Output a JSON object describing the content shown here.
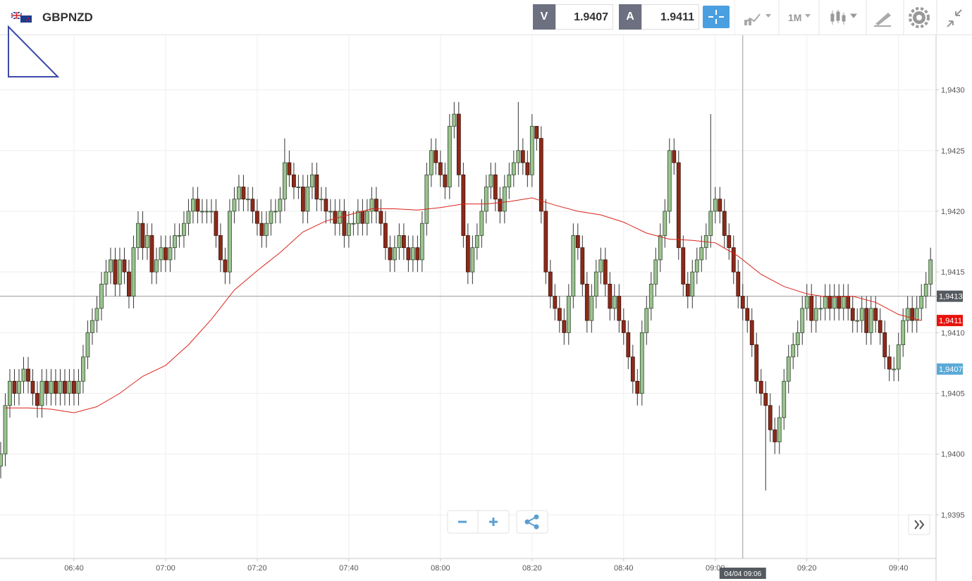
{
  "header": {
    "symbol": "GBPNZD",
    "bid_label": "V",
    "bid": "1.9407",
    "ask_label": "A",
    "ask": "1.9411",
    "timeframe": "1M"
  },
  "chart_data": {
    "type": "candlestick",
    "x": [
      384,
      385,
      386,
      387,
      388,
      389,
      390,
      391,
      392,
      393,
      394,
      395,
      396,
      397,
      398,
      399,
      400,
      401,
      402,
      403,
      404,
      405,
      406,
      407,
      408,
      409,
      410,
      411,
      412,
      413,
      414,
      415,
      416,
      417,
      418,
      419,
      420,
      421,
      422,
      423,
      424,
      425,
      426,
      427,
      428,
      429,
      430,
      431,
      432,
      433,
      434,
      435,
      436,
      437,
      438,
      439,
      440,
      441,
      442,
      443,
      444,
      445,
      446,
      447,
      448,
      449,
      450,
      451,
      452,
      453,
      454,
      455,
      456,
      457,
      458,
      459,
      460,
      461,
      462,
      463,
      464,
      465,
      466,
      467,
      468,
      469,
      470,
      471,
      472,
      473,
      474,
      475,
      476,
      477,
      478,
      479,
      480,
      481,
      482,
      483,
      484,
      485,
      486,
      487,
      488,
      489,
      490,
      491,
      492,
      493,
      494,
      495,
      496,
      497,
      498,
      499,
      500,
      501,
      502,
      503,
      504,
      505,
      506,
      507,
      508,
      509,
      510,
      511,
      512,
      513,
      514,
      515,
      516,
      517,
      518,
      519,
      520,
      521,
      522,
      523,
      524,
      525,
      526,
      527,
      528,
      529,
      530,
      531,
      532,
      533,
      534,
      535,
      536,
      537,
      538,
      539,
      540,
      541,
      542,
      543,
      544,
      545,
      546,
      547,
      548,
      549,
      550,
      551,
      552,
      553,
      554,
      555,
      556,
      557,
      558,
      559,
      560,
      561,
      562,
      563,
      564,
      565,
      566,
      567,
      568,
      569,
      570,
      571,
      572,
      573,
      574,
      575,
      576,
      577,
      578,
      579,
      580,
      581,
      582,
      583,
      584,
      585,
      586,
      587
    ],
    "open": [
      1.9399,
      1.94,
      1.9404,
      1.9406,
      1.9405,
      1.9406,
      1.9407,
      1.9406,
      1.9405,
      1.9404,
      1.9406,
      1.9405,
      1.9406,
      1.9405,
      1.9406,
      1.9405,
      1.9406,
      1.9405,
      1.9406,
      1.9408,
      1.941,
      1.9411,
      1.9412,
      1.9414,
      1.9415,
      1.9416,
      1.9414,
      1.9416,
      1.9415,
      1.9413,
      1.9417,
      1.9419,
      1.9417,
      1.9418,
      1.9415,
      1.9416,
      1.9417,
      1.9416,
      1.9417,
      1.9418,
      1.9418,
      1.9419,
      1.942,
      1.9421,
      1.942,
      1.942,
      1.942,
      1.942,
      1.9418,
      1.9416,
      1.9415,
      1.942,
      1.9421,
      1.9422,
      1.9421,
      1.9421,
      1.942,
      1.9419,
      1.9418,
      1.9419,
      1.942,
      1.942,
      1.9421,
      1.9424,
      1.9423,
      1.9422,
      1.9422,
      1.942,
      1.9422,
      1.9423,
      1.9421,
      1.9421,
      1.942,
      1.942,
      1.9419,
      1.942,
      1.9418,
      1.9419,
      1.9419,
      1.942,
      1.9419,
      1.942,
      1.9421,
      1.942,
      1.9419,
      1.9417,
      1.9416,
      1.9417,
      1.9418,
      1.9417,
      1.9416,
      1.9417,
      1.9416,
      1.9419,
      1.9423,
      1.9425,
      1.9424,
      1.9423,
      1.9422,
      1.9427,
      1.9428,
      1.9423,
      1.9418,
      1.9415,
      1.9417,
      1.9418,
      1.942,
      1.9422,
      1.9423,
      1.9421,
      1.942,
      1.9422,
      1.9423,
      1.9424,
      1.9425,
      1.9424,
      1.9423,
      1.9427,
      1.9426,
      1.942,
      1.9415,
      1.9413,
      1.9412,
      1.9411,
      1.941,
      1.9413,
      1.9418,
      1.9417,
      1.9414,
      1.9411,
      1.9413,
      1.9415,
      1.9416,
      1.9414,
      1.9412,
      1.9413,
      1.9411,
      1.941,
      1.9408,
      1.9406,
      1.9405,
      1.941,
      1.9412,
      1.9414,
      1.9416,
      1.9418,
      1.942,
      1.9425,
      1.9424,
      1.9417,
      1.9414,
      1.9413,
      1.9415,
      1.9416,
      1.9417,
      1.9418,
      1.942,
      1.9421,
      1.942,
      1.9418,
      1.9417,
      1.9415,
      1.9413,
      1.9412,
      1.9411,
      1.9409,
      1.9406,
      1.9405,
      1.9404,
      1.9402,
      1.9401,
      1.9403,
      1.9406,
      1.9408,
      1.9409,
      1.941,
      1.9412,
      1.9413,
      1.9411,
      1.9412,
      1.9412,
      1.9413,
      1.9412,
      1.9413,
      1.9412,
      1.9413,
      1.9412,
      1.9411,
      1.9411,
      1.9412,
      1.941,
      1.9412,
      1.9411,
      1.941,
      1.9408,
      1.9407,
      1.9407,
      1.9409,
      1.9411,
      1.9412,
      1.9411,
      1.9412,
      1.9413,
      1.9414
    ],
    "high": [
      1.9401,
      1.9405,
      1.9407,
      1.9407,
      1.9407,
      1.9408,
      1.9408,
      1.9407,
      1.9406,
      1.9407,
      1.9407,
      1.9407,
      1.9407,
      1.9407,
      1.9407,
      1.9407,
      1.9407,
      1.9407,
      1.9409,
      1.9411,
      1.9412,
      1.9413,
      1.9415,
      1.9416,
      1.9417,
      1.9417,
      1.9417,
      1.9417,
      1.9416,
      1.9418,
      1.942,
      1.942,
      1.9419,
      1.9419,
      1.9417,
      1.9418,
      1.9418,
      1.9418,
      1.9419,
      1.9419,
      1.942,
      1.9421,
      1.9422,
      1.9422,
      1.9421,
      1.9421,
      1.9421,
      1.9421,
      1.9419,
      1.9417,
      1.9421,
      1.9422,
      1.9423,
      1.9423,
      1.9422,
      1.9422,
      1.9421,
      1.942,
      1.942,
      1.9421,
      1.9421,
      1.9422,
      1.9426,
      1.9425,
      1.9424,
      1.9423,
      1.9423,
      1.9423,
      1.9424,
      1.9424,
      1.9422,
      1.9422,
      1.9421,
      1.9421,
      1.9421,
      1.9421,
      1.942,
      1.942,
      1.9421,
      1.9421,
      1.9421,
      1.9422,
      1.9422,
      1.9421,
      1.942,
      1.9418,
      1.9418,
      1.9419,
      1.9419,
      1.9418,
      1.9418,
      1.9418,
      1.942,
      1.9424,
      1.9426,
      1.9426,
      1.9425,
      1.9424,
      1.9428,
      1.9429,
      1.9429,
      1.9424,
      1.9419,
      1.9418,
      1.9419,
      1.9421,
      1.9423,
      1.9424,
      1.9424,
      1.9422,
      1.9423,
      1.9424,
      1.9425,
      1.9429,
      1.9426,
      1.9425,
      1.9428,
      1.9427,
      1.9427,
      1.9421,
      1.9416,
      1.9414,
      1.9413,
      1.9412,
      1.9414,
      1.9419,
      1.9419,
      1.9418,
      1.9415,
      1.9414,
      1.9416,
      1.9417,
      1.9417,
      1.9415,
      1.9414,
      1.9414,
      1.9412,
      1.9411,
      1.9409,
      1.9407,
      1.9411,
      1.9413,
      1.9415,
      1.9417,
      1.9419,
      1.9421,
      1.9426,
      1.9426,
      1.9425,
      1.9418,
      1.9415,
      1.9416,
      1.9417,
      1.9418,
      1.9419,
      1.9428,
      1.9422,
      1.9422,
      1.9421,
      1.9419,
      1.9418,
      1.9416,
      1.9414,
      1.9413,
      1.9412,
      1.941,
      1.9407,
      1.9406,
      1.9405,
      1.9403,
      1.9404,
      1.9407,
      1.9409,
      1.941,
      1.9411,
      1.9413,
      1.9414,
      1.9414,
      1.9413,
      1.9413,
      1.9414,
      1.9414,
      1.9414,
      1.9414,
      1.9414,
      1.9414,
      1.9413,
      1.9412,
      1.9413,
      1.9413,
      1.9413,
      1.9413,
      1.9412,
      1.9411,
      1.9409,
      1.9408,
      1.941,
      1.9412,
      1.9413,
      1.9413,
      1.9413,
      1.9414,
      1.9415,
      1.9417
    ],
    "low": [
      1.9398,
      1.9399,
      1.9403,
      1.9404,
      1.9404,
      1.9405,
      1.9405,
      1.9404,
      1.9403,
      1.9403,
      1.9404,
      1.9404,
      1.9404,
      1.9404,
      1.9404,
      1.9404,
      1.9404,
      1.9404,
      1.9405,
      1.9407,
      1.9409,
      1.941,
      1.9411,
      1.9413,
      1.9414,
      1.9413,
      1.9413,
      1.9414,
      1.9412,
      1.9412,
      1.9416,
      1.9416,
      1.9416,
      1.9414,
      1.9414,
      1.9415,
      1.9415,
      1.9415,
      1.9416,
      1.9417,
      1.9417,
      1.9418,
      1.9419,
      1.9419,
      1.9419,
      1.9419,
      1.9419,
      1.9417,
      1.9415,
      1.9414,
      1.9414,
      1.9419,
      1.942,
      1.942,
      1.942,
      1.9419,
      1.9418,
      1.9417,
      1.9417,
      1.9418,
      1.9419,
      1.9419,
      1.942,
      1.9422,
      1.9421,
      1.9421,
      1.9419,
      1.9419,
      1.9421,
      1.942,
      1.942,
      1.9419,
      1.9419,
      1.9418,
      1.9418,
      1.9417,
      1.9417,
      1.9418,
      1.9418,
      1.9418,
      1.9418,
      1.9419,
      1.9419,
      1.9418,
      1.9416,
      1.9415,
      1.9415,
      1.9416,
      1.9416,
      1.9415,
      1.9415,
      1.9415,
      1.9415,
      1.9418,
      1.9422,
      1.9423,
      1.9422,
      1.9421,
      1.9421,
      1.9426,
      1.9422,
      1.9417,
      1.9414,
      1.9414,
      1.9416,
      1.9417,
      1.9419,
      1.9421,
      1.942,
      1.9419,
      1.9419,
      1.9421,
      1.9422,
      1.9423,
      1.9423,
      1.9422,
      1.9422,
      1.9425,
      1.9419,
      1.9414,
      1.9412,
      1.9411,
      1.941,
      1.9409,
      1.9409,
      1.9412,
      1.9416,
      1.9413,
      1.941,
      1.941,
      1.9412,
      1.9414,
      1.9413,
      1.9411,
      1.9411,
      1.941,
      1.9409,
      1.9407,
      1.9405,
      1.9404,
      1.9404,
      1.9409,
      1.9411,
      1.9413,
      1.9415,
      1.9417,
      1.9419,
      1.9423,
      1.9416,
      1.9413,
      1.9412,
      1.9412,
      1.9414,
      1.9415,
      1.9416,
      1.9417,
      1.9419,
      1.9419,
      1.9417,
      1.9416,
      1.9414,
      1.9412,
      1.9411,
      1.941,
      1.9408,
      1.9405,
      1.9404,
      1.9397,
      1.9401,
      1.94,
      1.94,
      1.9402,
      1.9405,
      1.9407,
      1.9408,
      1.9409,
      1.9411,
      1.941,
      1.941,
      1.9411,
      1.9411,
      1.9411,
      1.9411,
      1.9411,
      1.9411,
      1.9411,
      1.941,
      1.941,
      1.941,
      1.9409,
      1.9409,
      1.941,
      1.9409,
      1.9407,
      1.9406,
      1.9406,
      1.9406,
      1.9408,
      1.941,
      1.941,
      1.941,
      1.9411,
      1.9412,
      1.9413
    ],
    "close": [
      1.94,
      1.9404,
      1.9406,
      1.9405,
      1.9406,
      1.9407,
      1.9406,
      1.9405,
      1.9404,
      1.9406,
      1.9405,
      1.9406,
      1.9405,
      1.9406,
      1.9405,
      1.9406,
      1.9405,
      1.9406,
      1.9408,
      1.941,
      1.9411,
      1.9412,
      1.9414,
      1.9415,
      1.9416,
      1.9414,
      1.9416,
      1.9415,
      1.9413,
      1.9417,
      1.9419,
      1.9417,
      1.9418,
      1.9415,
      1.9416,
      1.9417,
      1.9416,
      1.9417,
      1.9418,
      1.9418,
      1.9419,
      1.942,
      1.9421,
      1.942,
      1.942,
      1.942,
      1.942,
      1.9418,
      1.9416,
      1.9415,
      1.942,
      1.9421,
      1.9422,
      1.9421,
      1.9421,
      1.942,
      1.9419,
      1.9418,
      1.9419,
      1.942,
      1.942,
      1.9421,
      1.9424,
      1.9423,
      1.9422,
      1.9422,
      1.942,
      1.9422,
      1.9423,
      1.9421,
      1.9421,
      1.942,
      1.942,
      1.9419,
      1.942,
      1.9418,
      1.9419,
      1.9419,
      1.942,
      1.9419,
      1.942,
      1.9421,
      1.942,
      1.9419,
      1.9417,
      1.9416,
      1.9417,
      1.9418,
      1.9417,
      1.9416,
      1.9417,
      1.9416,
      1.9419,
      1.9423,
      1.9425,
      1.9424,
      1.9423,
      1.9422,
      1.9427,
      1.9428,
      1.9423,
      1.9418,
      1.9415,
      1.9417,
      1.9418,
      1.942,
      1.9422,
      1.9423,
      1.9421,
      1.942,
      1.9422,
      1.9423,
      1.9424,
      1.9425,
      1.9424,
      1.9423,
      1.9427,
      1.9426,
      1.942,
      1.9415,
      1.9413,
      1.9412,
      1.9411,
      1.941,
      1.9413,
      1.9418,
      1.9417,
      1.9414,
      1.9411,
      1.9413,
      1.9415,
      1.9416,
      1.9414,
      1.9412,
      1.9413,
      1.9411,
      1.941,
      1.9408,
      1.9406,
      1.9405,
      1.941,
      1.9412,
      1.9414,
      1.9416,
      1.9418,
      1.942,
      1.9425,
      1.9424,
      1.9417,
      1.9414,
      1.9413,
      1.9415,
      1.9416,
      1.9417,
      1.9418,
      1.942,
      1.9421,
      1.942,
      1.9418,
      1.9417,
      1.9415,
      1.9413,
      1.9412,
      1.9411,
      1.9409,
      1.9406,
      1.9405,
      1.9404,
      1.9402,
      1.9401,
      1.9403,
      1.9406,
      1.9408,
      1.9409,
      1.941,
      1.9412,
      1.9413,
      1.9411,
      1.9412,
      1.9412,
      1.9413,
      1.9412,
      1.9413,
      1.9412,
      1.9413,
      1.9412,
      1.9411,
      1.9411,
      1.9412,
      1.941,
      1.9412,
      1.9411,
      1.941,
      1.9408,
      1.9407,
      1.9407,
      1.9409,
      1.9411,
      1.9412,
      1.9411,
      1.9412,
      1.9413,
      1.9414,
      1.9416
    ],
    "up_color": "#9cc391",
    "down_color": "#8d2a19",
    "xlim": [
      383.85,
      588.2
    ],
    "ylim": [
      1.93914,
      1.94345
    ],
    "xticks": [
      {
        "value": 400,
        "label": "06:40"
      },
      {
        "value": 420,
        "label": "07:00"
      },
      {
        "value": 440,
        "label": "07:20"
      },
      {
        "value": 460,
        "label": "07:40"
      },
      {
        "value": 480,
        "label": "08:00"
      },
      {
        "value": 500,
        "label": "08:20"
      },
      {
        "value": 520,
        "label": "08:40"
      },
      {
        "value": 540,
        "label": "09:00"
      },
      {
        "value": 560,
        "label": "09:20"
      },
      {
        "value": 580,
        "label": "09:40"
      }
    ],
    "yticks": [
      {
        "value": 1.9395,
        "label": "1,9395"
      },
      {
        "value": 1.94,
        "label": "1,9400"
      },
      {
        "value": 1.9405,
        "label": "1,9405"
      },
      {
        "value": 1.941,
        "label": "1,9410"
      },
      {
        "value": 1.9415,
        "label": "1,9415"
      },
      {
        "value": 1.942,
        "label": "1,9420"
      },
      {
        "value": 1.9425,
        "label": "1,9425"
      },
      {
        "value": 1.943,
        "label": "1,9430"
      }
    ],
    "grid": true,
    "moving_average": {
      "type": "line",
      "color": "#d9241c",
      "x": [
        385,
        390,
        395,
        400,
        405,
        410,
        415,
        420,
        425,
        430,
        435,
        440,
        445,
        450,
        455,
        460,
        465,
        470,
        475,
        480,
        485,
        490,
        495,
        500,
        505,
        510,
        515,
        520,
        525,
        530,
        535,
        540,
        545,
        550,
        555,
        560,
        565,
        570,
        575,
        580,
        585
      ],
      "values": [
        1.94038,
        1.94038,
        1.94037,
        1.94034,
        1.94039,
        1.9405,
        1.94064,
        1.94073,
        1.9409,
        1.94111,
        1.94135,
        1.94151,
        1.94166,
        1.94183,
        1.94192,
        1.94197,
        1.94202,
        1.94202,
        1.94201,
        1.94203,
        1.94206,
        1.94206,
        1.94208,
        1.94211,
        1.94205,
        1.942,
        1.94197,
        1.94191,
        1.94182,
        1.94177,
        1.94176,
        1.94174,
        1.94163,
        1.94148,
        1.94138,
        1.94132,
        1.94129,
        1.9413,
        1.94125,
        1.94115,
        1.9411
      ]
    },
    "crosshair": {
      "x": {
        "value": 546,
        "label": "04/04 09:06"
      },
      "y": {
        "value": 1.9413,
        "label": "1,9413"
      }
    },
    "price_markers": [
      {
        "value": 1.9411,
        "label": "1,9411",
        "color": "#e8120c"
      },
      {
        "value": 1.9407,
        "label": "1,9407",
        "color": "#5aaad8"
      }
    ]
  }
}
